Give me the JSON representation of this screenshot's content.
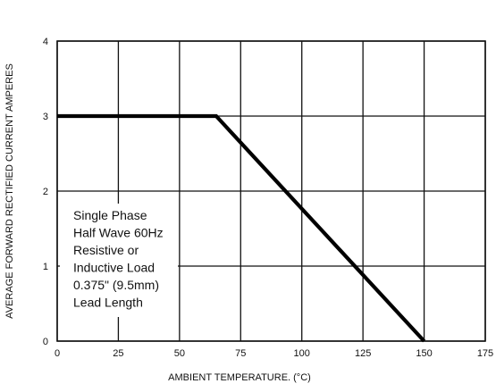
{
  "chart_data": {
    "type": "line",
    "title": "",
    "xlabel": "AMBIENT TEMPERATURE. (°C)",
    "ylabel": "AVERAGE FORWARD RECTIFIED CURRENT AMPERES",
    "xlim": [
      0,
      175
    ],
    "ylim": [
      0,
      4
    ],
    "x_ticks": [
      0,
      25,
      50,
      75,
      100,
      125,
      150,
      175
    ],
    "y_ticks": [
      0,
      1,
      2,
      3,
      4
    ],
    "grid": true,
    "legend": "none",
    "series": [
      {
        "x": [
          0,
          65,
          150
        ],
        "y": [
          3,
          3,
          0
        ]
      }
    ],
    "annotation": {
      "lines": [
        "Single Phase",
        "Half Wave 60Hz",
        "Resistive or",
        "Inductive Load",
        "0.375\" (9.5mm)",
        "Lead Length"
      ]
    }
  }
}
